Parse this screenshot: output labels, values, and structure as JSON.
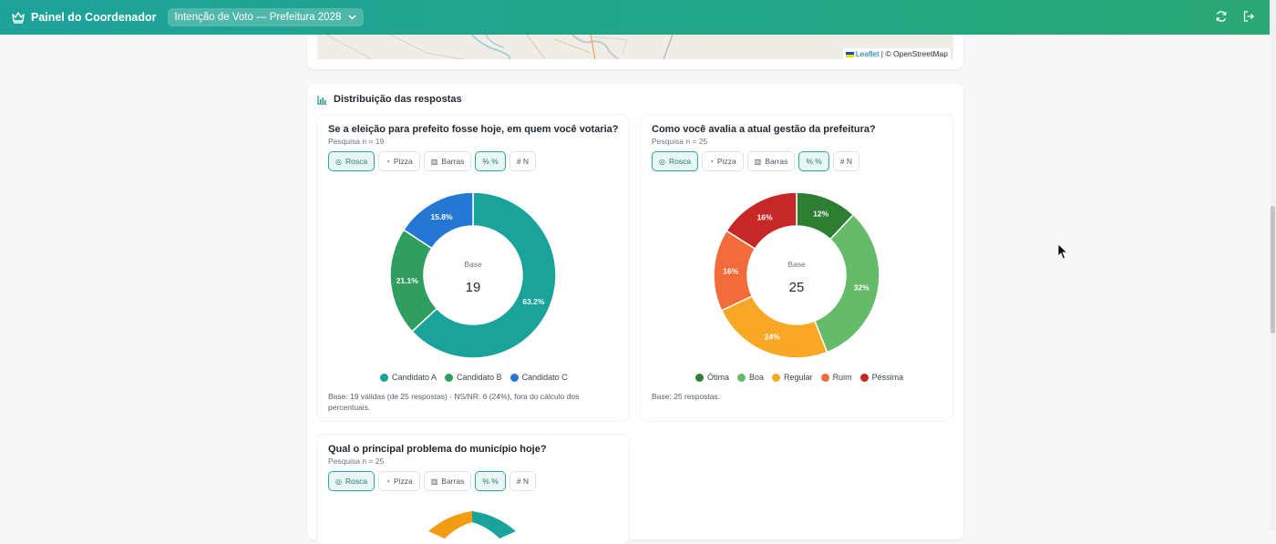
{
  "topbar": {
    "app_title": "Painel do Coordenador",
    "survey_selected": "Intenção de Voto — Prefeitura 2028",
    "icons": [
      "crown-icon",
      "chevron-down-icon",
      "refresh-icon",
      "logout-icon"
    ]
  },
  "map": {
    "attribution_leaflet": "Leaflet",
    "attribution_sep": " | © OpenStreetMap"
  },
  "distribution": {
    "title": "Distribuição das respostas",
    "toolbar_labels": {
      "rosca": "Rosca",
      "pizza": "Pizza",
      "barras": "Barras",
      "pct": "% %",
      "n": "# N"
    },
    "questions": [
      {
        "title": "Se a eleição para prefeito fosse hoje, em quem você votaria?",
        "subtitle": "Pesquisa   n = 19",
        "base_label": "Base",
        "base_value": "19",
        "note": "Base: 19 válidas (de 25 respostas) · NS/NR: 6 (24%), fora do cálculo dos percentuais."
      },
      {
        "title": "Como você avalia a atual gestão da prefeitura?",
        "subtitle": "Pesquisa   n = 25",
        "base_label": "Base",
        "base_value": "25",
        "note": "Base: 25 respostas."
      },
      {
        "title": "Qual o principal problema do município hoje?",
        "subtitle": "Pesquisa   n = 25"
      }
    ]
  },
  "chart_data": [
    {
      "type": "pie",
      "title": "Se a eleição para prefeito fosse hoje, em quem você votaria?",
      "categories": [
        "Candidato A",
        "Candidato B",
        "Candidato C"
      ],
      "values": [
        63.2,
        21.1,
        15.8
      ],
      "labels": [
        "63.2%",
        "21.1%",
        "15.8%"
      ],
      "colors": [
        "#1aa39b",
        "#2f9e5f",
        "#2478d4"
      ],
      "center_label": "Base",
      "center_value": "19",
      "legend_position": "bottom"
    },
    {
      "type": "pie",
      "title": "Como você avalia a atual gestão da prefeitura?",
      "categories": [
        "Ótima",
        "Boa",
        "Regular",
        "Ruim",
        "Péssima"
      ],
      "values": [
        12,
        32,
        24,
        16,
        16
      ],
      "labels": [
        "12%",
        "32%",
        "24%",
        "16%",
        "16%"
      ],
      "colors": [
        "#2e7d32",
        "#66bb6a",
        "#f9a825",
        "#f26b3a",
        "#c62828"
      ],
      "center_label": "Base",
      "center_value": "25",
      "legend_position": "bottom"
    }
  ]
}
